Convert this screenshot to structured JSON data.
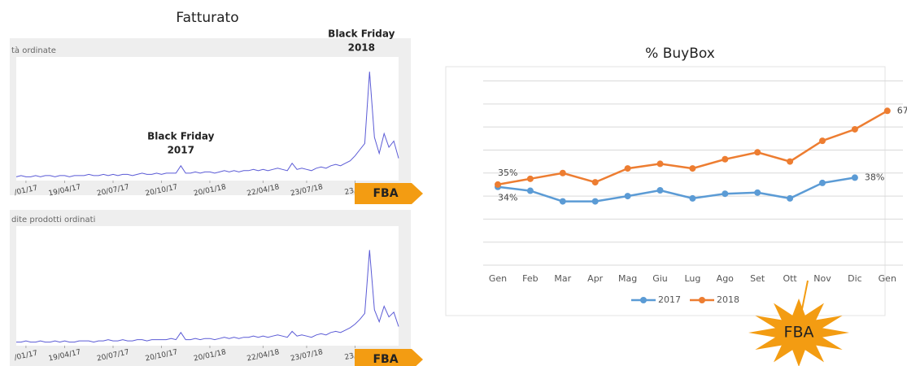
{
  "header": {
    "title": "Fatturato"
  },
  "chart_data": [
    {
      "type": "line",
      "title": "tà ordinate",
      "color": "#5b5bd6",
      "values": [
        3,
        4,
        3,
        3,
        4,
        3,
        4,
        4,
        3,
        4,
        4,
        3,
        4,
        4,
        4,
        5,
        4,
        4,
        5,
        4,
        5,
        4,
        5,
        5,
        4,
        5,
        6,
        5,
        5,
        6,
        5,
        6,
        6,
        6,
        12,
        6,
        6,
        7,
        6,
        7,
        7,
        6,
        7,
        8,
        7,
        8,
        7,
        8,
        8,
        9,
        8,
        9,
        8,
        9,
        10,
        9,
        8,
        14,
        9,
        10,
        9,
        8,
        10,
        11,
        10,
        12,
        13,
        12,
        14,
        16,
        20,
        25,
        30,
        88,
        35,
        22,
        38,
        27,
        32,
        18
      ],
      "ylim": [
        0,
        100
      ],
      "xticks": [
        {
          "value": 2,
          "label": "/01/17"
        },
        {
          "value": 10,
          "label": "19/04/17"
        },
        {
          "value": 20,
          "label": "20/07/17"
        },
        {
          "value": 30,
          "label": "20/10/17"
        },
        {
          "value": 40,
          "label": "20/01/18"
        },
        {
          "value": 51,
          "label": "22/04/18"
        },
        {
          "value": 60,
          "label": "23/07/18"
        },
        {
          "value": 70,
          "label": "23/10"
        }
      ],
      "annotations": [
        {
          "lines": [
            "Black Friday",
            "2017"
          ],
          "index": 34
        },
        {
          "lines": [
            "Black Friday",
            "2018"
          ],
          "index": 73
        }
      ],
      "tag": "FBA"
    },
    {
      "type": "line",
      "title": "dite prodotti ordinati",
      "color": "#5b5bd6",
      "values": [
        3,
        3,
        4,
        3,
        3,
        4,
        3,
        3,
        4,
        3,
        4,
        3,
        3,
        4,
        4,
        4,
        3,
        4,
        4,
        5,
        4,
        4,
        5,
        4,
        4,
        5,
        5,
        4,
        5,
        5,
        5,
        5,
        6,
        5,
        11,
        5,
        5,
        6,
        5,
        6,
        6,
        5,
        6,
        7,
        6,
        7,
        6,
        7,
        7,
        8,
        7,
        8,
        7,
        8,
        9,
        8,
        7,
        12,
        8,
        9,
        8,
        7,
        9,
        10,
        9,
        11,
        12,
        11,
        13,
        15,
        18,
        22,
        27,
        80,
        30,
        20,
        33,
        24,
        28,
        16
      ],
      "ylim": [
        0,
        100
      ],
      "xticks": [
        {
          "value": 2,
          "label": "/01/17"
        },
        {
          "value": 10,
          "label": "19/04/17"
        },
        {
          "value": 20,
          "label": "20/07/17"
        },
        {
          "value": 30,
          "label": "20/10/17"
        },
        {
          "value": 40,
          "label": "20/01/18"
        },
        {
          "value": 51,
          "label": "22/04/18"
        },
        {
          "value": 60,
          "label": "23/07/18"
        },
        {
          "value": 70,
          "label": "23/10"
        }
      ],
      "tag": "FBA"
    },
    {
      "type": "line",
      "title": "% BuyBox",
      "categories": [
        "Gen",
        "Feb",
        "Mar",
        "Apr",
        "Mag",
        "Giu",
        "Lug",
        "Ago",
        "Set",
        "Ott",
        "Nov",
        "Dic",
        "Gen"
      ],
      "series": [
        {
          "name": "2017",
          "color": "#5b9bd5",
          "values": [
            34,
            32.3,
            27.7,
            27.7,
            30,
            32.5,
            29,
            31,
            31.5,
            29,
            35.7,
            38,
            null
          ],
          "value_labels": [
            "34%",
            null,
            null,
            null,
            null,
            null,
            null,
            null,
            null,
            null,
            null,
            "38%",
            null
          ]
        },
        {
          "name": "2018",
          "color": "#ed7d31",
          "values": [
            35,
            37.5,
            40,
            36,
            42,
            44,
            42,
            46,
            49,
            45,
            54,
            59,
            67
          ],
          "value_labels": [
            "35%",
            null,
            null,
            null,
            null,
            null,
            null,
            null,
            null,
            null,
            null,
            null,
            "67%"
          ]
        }
      ],
      "ylim": [
        0,
        80
      ],
      "yticks": [
        0,
        10,
        20,
        30,
        40,
        50,
        60,
        70,
        80
      ],
      "grid": true,
      "legend": "bottom",
      "callout": "FBA"
    }
  ]
}
